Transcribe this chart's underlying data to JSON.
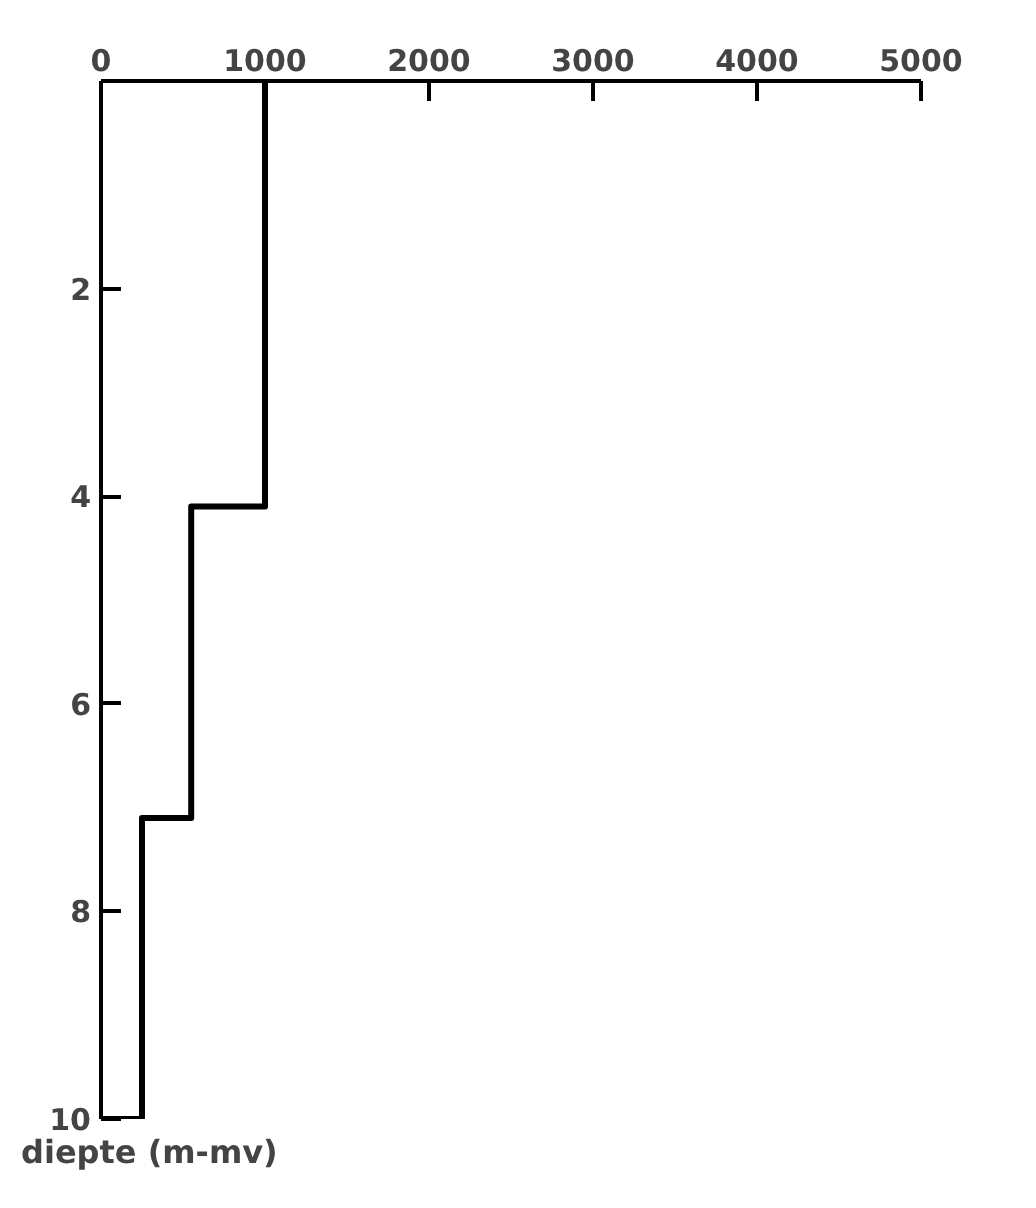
{
  "chart_data": {
    "type": "line",
    "x": [
      1000,
      1000,
      550,
      550,
      250,
      250,
      0
    ],
    "values": [
      0,
      4.1,
      4.1,
      7.1,
      7.1,
      10,
      10
    ],
    "color": "#000000",
    "ylabel": "diepte (m-mv)",
    "xlim": [
      0,
      5000
    ],
    "xticks": [
      0,
      1000,
      2000,
      3000,
      4000,
      5000
    ],
    "ylim": [
      10,
      0
    ],
    "yticks": [
      2,
      4,
      6,
      8,
      10
    ],
    "grid": false,
    "marker": "none",
    "line_style": "solid"
  }
}
